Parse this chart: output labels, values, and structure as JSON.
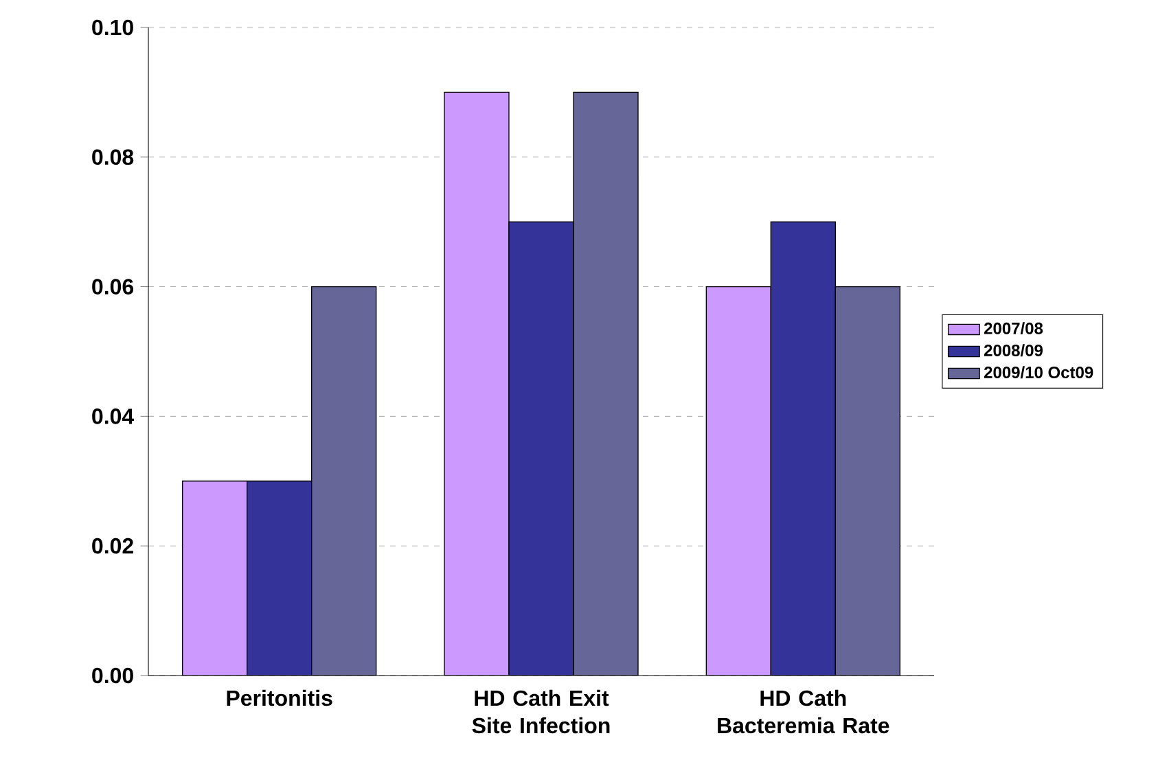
{
  "chart_data": {
    "type": "bar",
    "categories": [
      "Peritonitis",
      "HD Cath Exit Site Infection",
      "HD Cath Bacteremia Rate"
    ],
    "series": [
      {
        "name": "2007/08",
        "color": "#cc99ff",
        "values": [
          0.03,
          0.09,
          0.06
        ]
      },
      {
        "name": "2008/09",
        "color": "#333399",
        "values": [
          0.03,
          0.07,
          0.07
        ]
      },
      {
        "name": "2009/10 Oct09",
        "color": "#666699",
        "values": [
          0.06,
          0.09,
          0.06
        ]
      }
    ],
    "ylim": [
      0,
      0.1
    ],
    "yticks": [
      {
        "value": 0,
        "label": "0.00"
      },
      {
        "value": 0.02,
        "label": "0.02"
      },
      {
        "value": 0.04,
        "label": "0.04"
      },
      {
        "value": 0.06,
        "label": "0.06"
      },
      {
        "value": 0.08,
        "label": "0.08"
      },
      {
        "value": 0.1,
        "label": "0.10"
      }
    ],
    "grid": "y",
    "legend": "right"
  }
}
